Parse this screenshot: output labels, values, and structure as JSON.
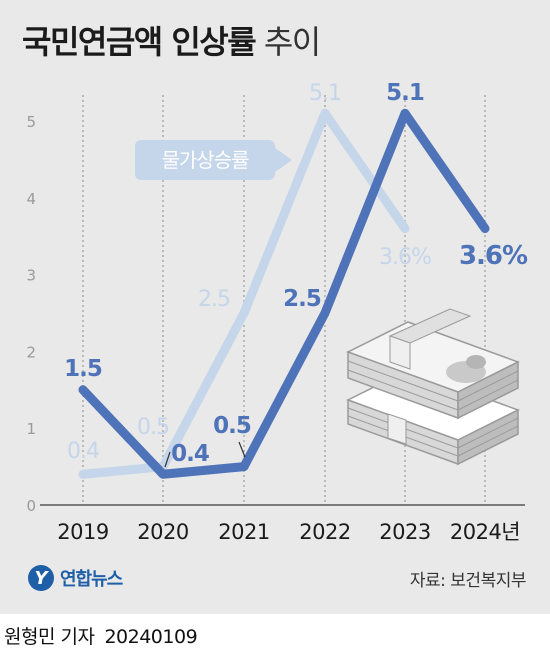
{
  "title": {
    "bold": "국민연금액 인상률",
    "light": "추이"
  },
  "legend_label": "물가상승률",
  "source": "자료: 보건복지부",
  "logo_text": "연합뉴스",
  "byline": {
    "author": "원형민 기자",
    "date": "20240109"
  },
  "colors": {
    "pension": "#4f73b8",
    "inflation": "#c5d5ea",
    "background": "#e9e9e9",
    "grid": "#8c8c8c",
    "logo": "#1e5fa8"
  },
  "chart_data": {
    "type": "line",
    "categories": [
      "2019",
      "2020",
      "2021",
      "2022",
      "2023",
      "2024년"
    ],
    "ylim": [
      0,
      5
    ],
    "yticks": [
      "0",
      "1",
      "2",
      "3",
      "4",
      "5"
    ],
    "grid": "vertical dashed",
    "series": [
      {
        "name": "",
        "values": [
          1.5,
          0.4,
          0.5,
          2.5,
          5.1,
          3.6
        ],
        "labels": [
          "1.5",
          "0.4",
          "0.5",
          "2.5",
          "5.1",
          "3.6%"
        ]
      },
      {
        "name": "물가상승률",
        "values": [
          0.4,
          0.5,
          2.5,
          5.1,
          3.6,
          null
        ],
        "labels": [
          "0.4",
          "0.5",
          "2.5",
          "5.1",
          "3.6%",
          null
        ]
      }
    ]
  }
}
